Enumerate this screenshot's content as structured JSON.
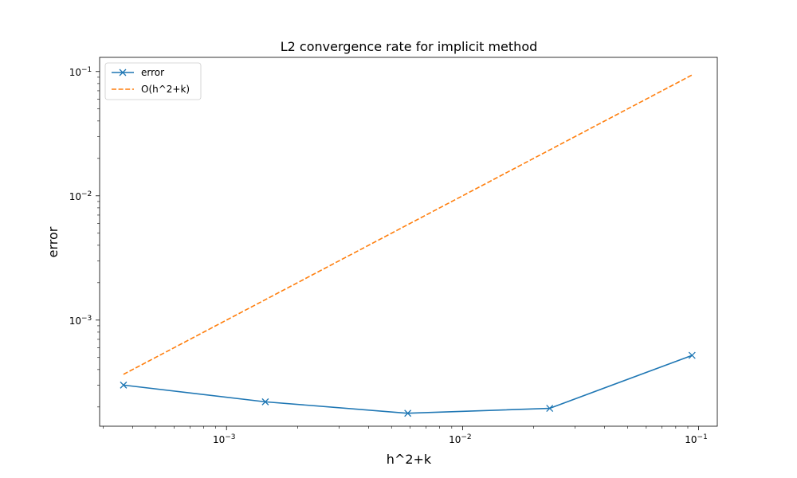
{
  "chart_data": {
    "type": "line",
    "title": "L2 convergence rate for implicit method",
    "xlabel": "h^2+k",
    "ylabel": "error",
    "xscale": "log",
    "yscale": "log",
    "xlim": [
      0.00029,
      0.12
    ],
    "ylim": [
      0.00014,
      0.13
    ],
    "x_ticks": [
      {
        "value": 0.001,
        "base": "10",
        "exp": "−3"
      },
      {
        "value": 0.01,
        "base": "10",
        "exp": "−2"
      },
      {
        "value": 0.1,
        "base": "10",
        "exp": "−1"
      }
    ],
    "y_ticks": [
      {
        "value": 0.001,
        "base": "10",
        "exp": "−3"
      },
      {
        "value": 0.01,
        "base": "10",
        "exp": "−2"
      },
      {
        "value": 0.1,
        "base": "10",
        "exp": "−1"
      }
    ],
    "grid": false,
    "legend_position": "upper left",
    "series": [
      {
        "name": "error",
        "color": "#1f77b4",
        "style": "solid",
        "marker": "x",
        "x": [
          0.000366,
          0.00146,
          0.00586,
          0.0234,
          0.0938
        ],
        "y": [
          0.0003,
          0.00022,
          0.000178,
          0.000195,
          0.00052
        ]
      },
      {
        "name": "O(h^2+k)",
        "color": "#ff7f0e",
        "style": "dashed",
        "marker": "none",
        "x": [
          0.000366,
          0.00146,
          0.00586,
          0.0234,
          0.0938
        ],
        "y": [
          0.000366,
          0.00146,
          0.00586,
          0.0234,
          0.0938
        ]
      }
    ]
  }
}
